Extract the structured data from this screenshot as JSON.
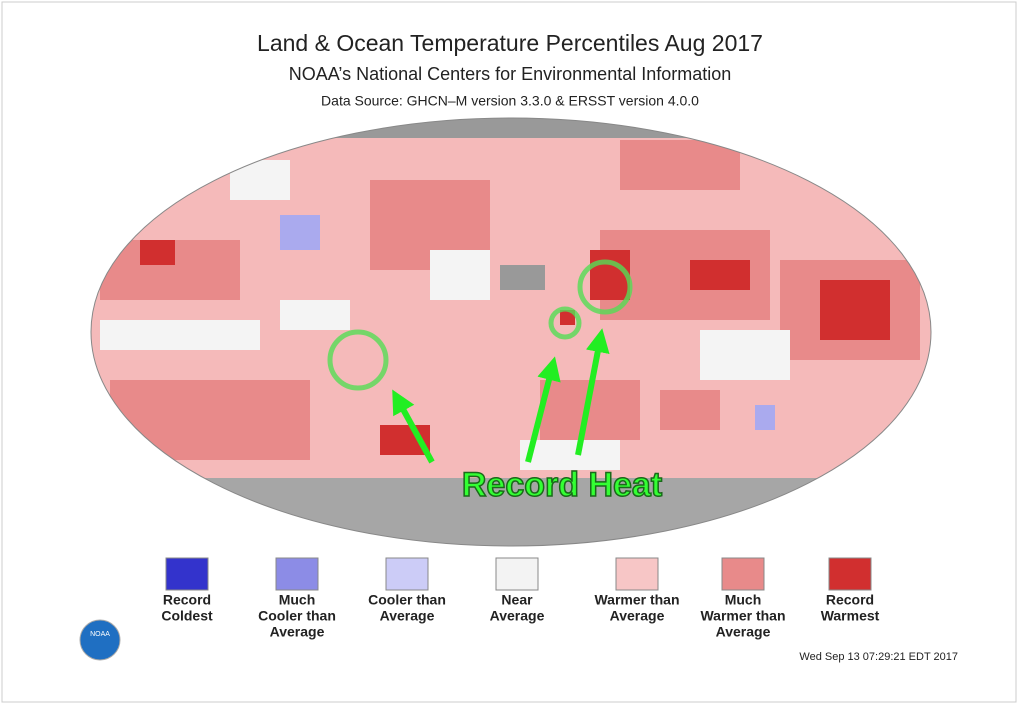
{
  "header": {
    "title": "Land & Ocean Temperature Percentiles Aug 2017",
    "subtitle": "NOAA’s National Centers for Environmental Information",
    "source": "Data Source: GHCN–M version 3.3.0 & ERSST version 4.0.0"
  },
  "annotation": "Record Heat",
  "legend": {
    "items": [
      {
        "lines": [
          "Record",
          "Coldest"
        ],
        "color": "#3333cc"
      },
      {
        "lines": [
          "Much",
          "Cooler than",
          "Average"
        ],
        "color": "#8c8ce6"
      },
      {
        "lines": [
          "Cooler than",
          "Average"
        ],
        "color": "#ccccf7"
      },
      {
        "lines": [
          "Near",
          "Average"
        ],
        "color": "#f3f3f3"
      },
      {
        "lines": [
          "Warmer than",
          "Average"
        ],
        "color": "#f7c6c6"
      },
      {
        "lines": [
          "Much",
          "Warmer than",
          "Average"
        ],
        "color": "#e88a8a"
      },
      {
        "lines": [
          "Record",
          "Warmest"
        ],
        "color": "#d12f2f"
      }
    ]
  },
  "logo": "NOAA",
  "timestamp": "Wed Sep 13 07:29:21 EDT 2017"
}
